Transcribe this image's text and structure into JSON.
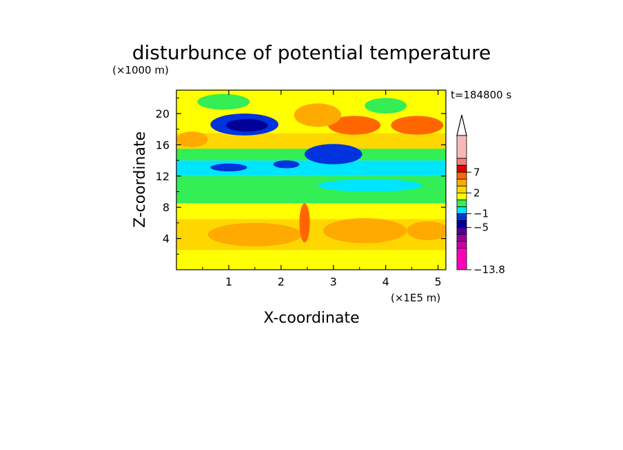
{
  "chart_data": {
    "type": "heatmap",
    "title": "disturbunce of potential temperature",
    "time_label": "t=184800 s",
    "xlabel": "X-coordinate",
    "ylabel": "Z-coordinate",
    "x_unit": "(×1E5 m)",
    "y_unit": "(×1000 m)",
    "xlim": [
      0,
      5.15
    ],
    "ylim": [
      0,
      23
    ],
    "x_ticks": [
      1,
      2,
      3,
      4,
      5
    ],
    "y_ticks": [
      4,
      8,
      12,
      16,
      20
    ],
    "colorbar": {
      "levels": [
        "7",
        "2",
        "−1",
        "−5",
        "−13.8"
      ],
      "colors_top_to_bottom": [
        "#f8b8b8",
        "#f08080",
        "#e00000",
        "#ff6600",
        "#ffaa00",
        "#ffd700",
        "#ffff00",
        "#33ee55",
        "#00e5ff",
        "#0033dd",
        "#000099",
        "#550099",
        "#990099",
        "#cc00aa",
        "#ff00bb"
      ],
      "extend": "max"
    },
    "bands": [
      {
        "z0": 0.0,
        "z1": 1.0,
        "level": 0.5
      },
      {
        "z0": 1.0,
        "z1": 2.5,
        "level": 0.5
      },
      {
        "z0": 2.5,
        "z1": 6.5,
        "level": 1.0
      },
      {
        "z0": 6.5,
        "z1": 8.5,
        "level": 0.5
      },
      {
        "z0": 8.5,
        "z1": 12.0,
        "level": 0.0
      },
      {
        "z0": 12.0,
        "z1": 14.0,
        "level": -0.8
      },
      {
        "z0": 14.0,
        "z1": 15.5,
        "level": 0.0
      },
      {
        "z0": 15.5,
        "z1": 17.5,
        "level": 0.8
      },
      {
        "z0": 17.5,
        "z1": 19.0,
        "level": 0.4
      },
      {
        "z0": 19.0,
        "z1": 23.0,
        "level": 0.6
      }
    ],
    "features": [
      {
        "x": 1.3,
        "z": 18.6,
        "rx": 0.65,
        "rz": 1.4,
        "level": -4.0
      },
      {
        "x": 1.35,
        "z": 18.5,
        "rx": 0.4,
        "rz": 0.8,
        "level": -6.0
      },
      {
        "x": 3.0,
        "z": 14.8,
        "rx": 0.55,
        "rz": 1.3,
        "level": -4.0
      },
      {
        "x": 1.0,
        "z": 13.1,
        "rx": 0.35,
        "rz": 0.5,
        "level": -4.0
      },
      {
        "x": 2.1,
        "z": 13.5,
        "rx": 0.25,
        "rz": 0.5,
        "level": -4.0
      },
      {
        "x": 3.4,
        "z": 18.5,
        "rx": 0.5,
        "rz": 1.2,
        "level": 2.0
      },
      {
        "x": 4.6,
        "z": 18.5,
        "rx": 0.5,
        "rz": 1.2,
        "level": 2.0
      },
      {
        "x": 2.7,
        "z": 19.8,
        "rx": 0.45,
        "rz": 1.5,
        "level": 1.5
      },
      {
        "x": 3.6,
        "z": 5.0,
        "rx": 0.8,
        "rz": 1.6,
        "level": 1.5
      },
      {
        "x": 1.5,
        "z": 4.5,
        "rx": 0.9,
        "rz": 1.5,
        "level": 1.5
      },
      {
        "x": 4.8,
        "z": 5.0,
        "rx": 0.4,
        "rz": 1.2,
        "level": 1.5
      },
      {
        "x": 2.45,
        "z": 6.0,
        "rx": 0.1,
        "rz": 2.5,
        "level": 2.5
      },
      {
        "x": 0.9,
        "z": 21.5,
        "rx": 0.5,
        "rz": 1.0,
        "level": 0.0
      },
      {
        "x": 4.0,
        "z": 21.0,
        "rx": 0.4,
        "rz": 1.0,
        "level": 0.0
      },
      {
        "x": 3.7,
        "z": 10.8,
        "rx": 1.0,
        "rz": 0.8,
        "level": -0.5
      },
      {
        "x": 0.3,
        "z": 16.7,
        "rx": 0.3,
        "rz": 1.0,
        "level": 1.5
      }
    ]
  }
}
